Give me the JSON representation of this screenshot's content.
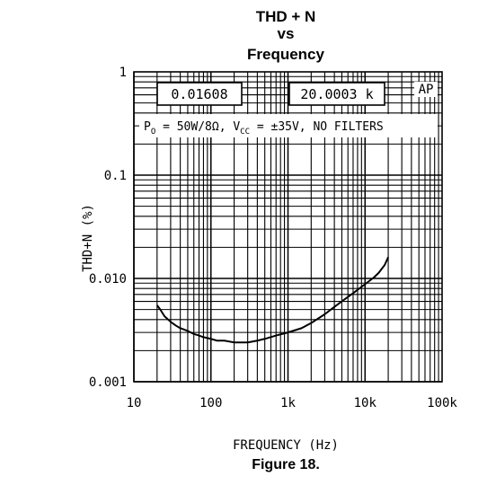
{
  "chart_data": {
    "type": "line",
    "title_lines": [
      "THD + N",
      "vs",
      "Frequency"
    ],
    "xlabel": "FREQUENCY (Hz)",
    "ylabel": "THD+N (%)",
    "x_scale": "log",
    "y_scale": "log",
    "xlim": [
      10,
      100000
    ],
    "ylim": [
      0.001,
      1
    ],
    "x_ticks": [
      {
        "value": 10,
        "label": "10"
      },
      {
        "value": 100,
        "label": "100"
      },
      {
        "value": 1000,
        "label": "1k"
      },
      {
        "value": 10000,
        "label": "10k"
      },
      {
        "value": 100000,
        "label": "100k"
      }
    ],
    "y_ticks": [
      {
        "value": 0.001,
        "label": "0.001"
      },
      {
        "value": 0.01,
        "label": "0.010"
      },
      {
        "value": 0.1,
        "label": "0.1"
      },
      {
        "value": 1,
        "label": "1"
      }
    ],
    "grid": true,
    "readout_boxes": [
      "0.01608",
      "20.0003 k"
    ],
    "badge": "AP",
    "condition_parts": {
      "p_main": "P",
      "p_sub": "O",
      "p_rest": " = 50W/8Ω, V",
      "v_sub": "CC",
      "v_rest": " = ±35V, NO FILTERS"
    },
    "series": [
      {
        "x": [
          20,
          22,
          25,
          30,
          35,
          40,
          50,
          60,
          70,
          80,
          100,
          120,
          150,
          200,
          250,
          300,
          400,
          500,
          700,
          1000,
          1500,
          2000,
          3000,
          4000,
          5000,
          7000,
          10000,
          13000,
          15000,
          18000,
          20000
        ],
        "y": [
          0.0055,
          0.005,
          0.0043,
          0.0038,
          0.0035,
          0.0033,
          0.0031,
          0.0029,
          0.0028,
          0.0027,
          0.0026,
          0.0025,
          0.0025,
          0.0024,
          0.0024,
          0.0024,
          0.0025,
          0.0026,
          0.0028,
          0.003,
          0.0033,
          0.0037,
          0.0045,
          0.0053,
          0.006,
          0.0072,
          0.0088,
          0.0102,
          0.0113,
          0.0135,
          0.01608
        ]
      }
    ]
  },
  "figure_caption": "Figure 18."
}
